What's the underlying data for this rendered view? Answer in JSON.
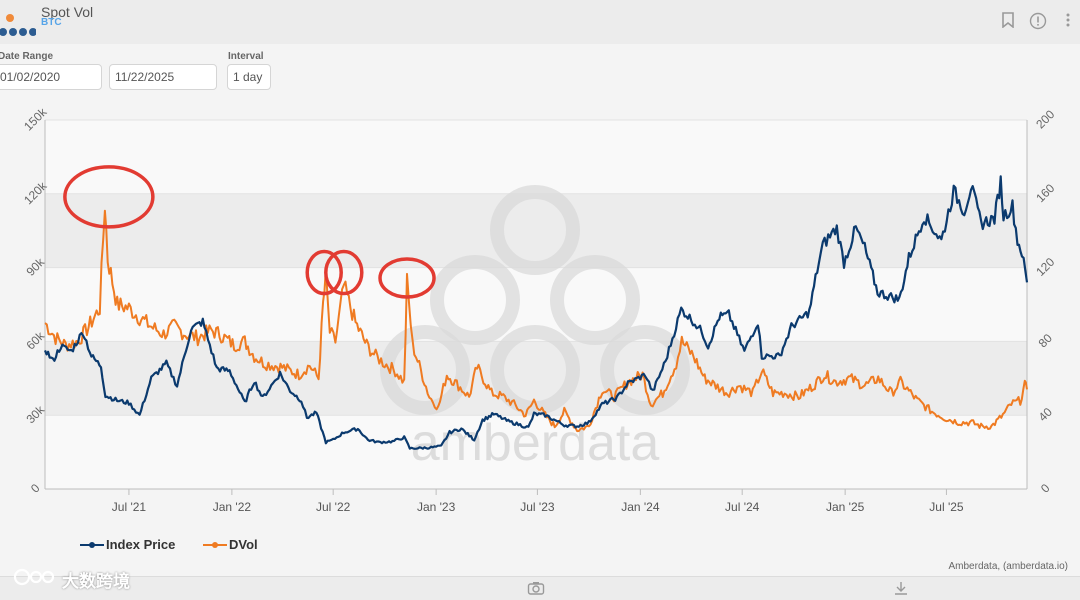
{
  "header": {
    "title": "Spot Vol",
    "subtitle": "BTC",
    "icons": [
      "bookmark-icon",
      "info-icon",
      "more-vertical-icon"
    ]
  },
  "controls": {
    "date_range_label": "Date Range",
    "start_date": "01/02/2020",
    "end_date": "11/22/2025",
    "interval_label": "Interval",
    "interval_value": "1 day"
  },
  "colors": {
    "index_price": "#0b3a6e",
    "dvol": "#ef7b22",
    "annotation": "#e23b32"
  },
  "chart_data": {
    "type": "line",
    "title": "",
    "xlabel": "",
    "ylabel": "",
    "x_ticks": [
      "Jul '21",
      "Jan '22",
      "Jul '22",
      "Jan '23",
      "Jul '23",
      "Jan '24",
      "Jul '24",
      "Jan '25",
      "Jul '25"
    ],
    "x_range": [
      "2021-02-01",
      "2025-11-22"
    ],
    "y_left": {
      "range": [
        0,
        150000
      ],
      "ticks": [
        "0",
        "30k",
        "60k",
        "90k",
        "120k",
        "150k"
      ]
    },
    "y_right": {
      "range": [
        0,
        200
      ],
      "ticks": [
        "0",
        "40",
        "80",
        "120",
        "160",
        "200"
      ]
    },
    "grid": true,
    "legend_position": "bottom-left",
    "series": [
      {
        "name": "Index Price",
        "axis": "left",
        "points": [
          [
            "2021-02-01",
            57000
          ],
          [
            "2021-02-15",
            52000
          ],
          [
            "2021-03-01",
            58000
          ],
          [
            "2021-03-20",
            56000
          ],
          [
            "2021-04-10",
            64000
          ],
          [
            "2021-04-25",
            54000
          ],
          [
            "2021-05-12",
            50000
          ],
          [
            "2021-05-20",
            38000
          ],
          [
            "2021-06-10",
            36000
          ],
          [
            "2021-07-01",
            35000
          ],
          [
            "2021-07-20",
            30000
          ],
          [
            "2021-08-10",
            45000
          ],
          [
            "2021-09-06",
            51000
          ],
          [
            "2021-09-25",
            42000
          ],
          [
            "2021-10-20",
            65000
          ],
          [
            "2021-11-10",
            68000
          ],
          [
            "2021-12-05",
            49000
          ],
          [
            "2021-12-28",
            48000
          ],
          [
            "2022-01-24",
            35000
          ],
          [
            "2022-02-10",
            44000
          ],
          [
            "2022-02-25",
            37000
          ],
          [
            "2022-03-28",
            47000
          ],
          [
            "2022-04-15",
            40000
          ],
          [
            "2022-05-05",
            36000
          ],
          [
            "2022-05-15",
            29000
          ],
          [
            "2022-06-01",
            31000
          ],
          [
            "2022-06-18",
            19000
          ],
          [
            "2022-07-01",
            20000
          ],
          [
            "2022-07-20",
            23000
          ],
          [
            "2022-08-14",
            24500
          ],
          [
            "2022-09-01",
            20000
          ],
          [
            "2022-09-20",
            19000
          ],
          [
            "2022-10-15",
            19300
          ],
          [
            "2022-11-05",
            21000
          ],
          [
            "2022-11-15",
            16500
          ],
          [
            "2022-12-20",
            16800
          ],
          [
            "2023-01-10",
            17400
          ],
          [
            "2023-01-25",
            23000
          ],
          [
            "2023-02-15",
            24500
          ],
          [
            "2023-03-10",
            20000
          ],
          [
            "2023-03-25",
            28000
          ],
          [
            "2023-04-14",
            30500
          ],
          [
            "2023-05-10",
            27500
          ],
          [
            "2023-06-15",
            25000
          ],
          [
            "2023-06-25",
            30500
          ],
          [
            "2023-07-15",
            30000
          ],
          [
            "2023-08-18",
            26000
          ],
          [
            "2023-09-10",
            25500
          ],
          [
            "2023-10-01",
            27000
          ],
          [
            "2023-10-25",
            34500
          ],
          [
            "2023-11-20",
            37000
          ],
          [
            "2023-12-10",
            43000
          ],
          [
            "2024-01-10",
            46500
          ],
          [
            "2024-01-23",
            39500
          ],
          [
            "2024-02-15",
            52000
          ],
          [
            "2024-03-14",
            73000
          ],
          [
            "2024-04-01",
            69000
          ],
          [
            "2024-04-20",
            64000
          ],
          [
            "2024-05-01",
            58000
          ],
          [
            "2024-05-21",
            70000
          ],
          [
            "2024-06-07",
            71000
          ],
          [
            "2024-07-05",
            56000
          ],
          [
            "2024-07-29",
            68000
          ],
          [
            "2024-08-05",
            54000
          ],
          [
            "2024-09-06",
            54000
          ],
          [
            "2024-09-27",
            66000
          ],
          [
            "2024-10-29",
            72000
          ],
          [
            "2024-11-12",
            89000
          ],
          [
            "2024-11-22",
            99000
          ],
          [
            "2024-12-05",
            103000
          ],
          [
            "2024-12-17",
            106000
          ],
          [
            "2024-12-30",
            92000
          ],
          [
            "2025-01-20",
            106000
          ],
          [
            "2025-02-05",
            98000
          ],
          [
            "2025-02-28",
            80000
          ],
          [
            "2025-04-08",
            77000
          ],
          [
            "2025-04-25",
            94000
          ],
          [
            "2025-05-22",
            111000
          ],
          [
            "2025-06-22",
            101000
          ],
          [
            "2025-07-14",
            121000
          ],
          [
            "2025-08-02",
            113000
          ],
          [
            "2025-08-14",
            123000
          ],
          [
            "2025-09-01",
            108000
          ],
          [
            "2025-09-25",
            110000
          ],
          [
            "2025-10-06",
            125000
          ],
          [
            "2025-10-11",
            111000
          ],
          [
            "2025-10-27",
            115000
          ],
          [
            "2025-11-05",
            101000
          ],
          [
            "2025-11-13",
            96000
          ],
          [
            "2025-11-22",
            84000
          ]
        ]
      },
      {
        "name": "DVol",
        "axis": "right",
        "points": [
          [
            "2021-02-01",
            90
          ],
          [
            "2021-02-20",
            82
          ],
          [
            "2021-03-10",
            78
          ],
          [
            "2021-04-01",
            80
          ],
          [
            "2021-04-20",
            88
          ],
          [
            "2021-05-10",
            98
          ],
          [
            "2021-05-19",
            155
          ],
          [
            "2021-05-24",
            125
          ],
          [
            "2021-06-10",
            100
          ],
          [
            "2021-07-01",
            98
          ],
          [
            "2021-07-20",
            93
          ],
          [
            "2021-08-10",
            88
          ],
          [
            "2021-09-01",
            84
          ],
          [
            "2021-09-20",
            88
          ],
          [
            "2021-10-10",
            84
          ],
          [
            "2021-11-01",
            82
          ],
          [
            "2021-11-25",
            86
          ],
          [
            "2021-12-10",
            84
          ],
          [
            "2022-01-05",
            78
          ],
          [
            "2022-01-24",
            80
          ],
          [
            "2022-02-10",
            72
          ],
          [
            "2022-03-01",
            68
          ],
          [
            "2022-04-01",
            66
          ],
          [
            "2022-05-01",
            62
          ],
          [
            "2022-05-20",
            67
          ],
          [
            "2022-06-05",
            60
          ],
          [
            "2022-06-13",
            100
          ],
          [
            "2022-06-18",
            115
          ],
          [
            "2022-06-25",
            85
          ],
          [
            "2022-07-05",
            80
          ],
          [
            "2022-07-20",
            110
          ],
          [
            "2022-08-10",
            90
          ],
          [
            "2022-08-30",
            78
          ],
          [
            "2022-09-15",
            72
          ],
          [
            "2022-10-01",
            68
          ],
          [
            "2022-10-20",
            64
          ],
          [
            "2022-11-05",
            58
          ],
          [
            "2022-11-10",
            112
          ],
          [
            "2022-11-20",
            78
          ],
          [
            "2022-12-05",
            64
          ],
          [
            "2022-12-20",
            50
          ],
          [
            "2023-01-05",
            44
          ],
          [
            "2023-01-20",
            62
          ],
          [
            "2023-02-10",
            56
          ],
          [
            "2023-03-01",
            50
          ],
          [
            "2023-03-15",
            66
          ],
          [
            "2023-04-10",
            52
          ],
          [
            "2023-05-01",
            50
          ],
          [
            "2023-05-20",
            46
          ],
          [
            "2023-06-10",
            40
          ],
          [
            "2023-06-25",
            48
          ],
          [
            "2023-07-15",
            40
          ],
          [
            "2023-08-01",
            34
          ],
          [
            "2023-08-18",
            42
          ],
          [
            "2023-09-10",
            32
          ],
          [
            "2023-10-01",
            34
          ],
          [
            "2023-10-25",
            54
          ],
          [
            "2023-11-15",
            50
          ],
          [
            "2023-12-10",
            58
          ],
          [
            "2024-01-05",
            62
          ],
          [
            "2024-01-20",
            46
          ],
          [
            "2024-02-10",
            52
          ],
          [
            "2024-03-05",
            68
          ],
          [
            "2024-03-15",
            80
          ],
          [
            "2024-04-05",
            72
          ],
          [
            "2024-04-25",
            60
          ],
          [
            "2024-05-15",
            56
          ],
          [
            "2024-06-05",
            52
          ],
          [
            "2024-06-25",
            56
          ],
          [
            "2024-07-20",
            52
          ],
          [
            "2024-08-05",
            64
          ],
          [
            "2024-08-25",
            52
          ],
          [
            "2024-09-15",
            52
          ],
          [
            "2024-10-10",
            50
          ],
          [
            "2024-11-05",
            56
          ],
          [
            "2024-11-25",
            62
          ],
          [
            "2024-12-15",
            58
          ],
          [
            "2025-01-10",
            60
          ],
          [
            "2025-02-05",
            56
          ],
          [
            "2025-03-01",
            60
          ],
          [
            "2025-03-25",
            52
          ],
          [
            "2025-04-10",
            58
          ],
          [
            "2025-05-10",
            48
          ],
          [
            "2025-06-05",
            42
          ],
          [
            "2025-07-01",
            38
          ],
          [
            "2025-07-25",
            36
          ],
          [
            "2025-08-15",
            36
          ],
          [
            "2025-09-01",
            34
          ],
          [
            "2025-09-20",
            34
          ],
          [
            "2025-10-10",
            40
          ],
          [
            "2025-10-25",
            46
          ],
          [
            "2025-11-10",
            48
          ],
          [
            "2025-11-18",
            56
          ],
          [
            "2025-11-22",
            54
          ]
        ]
      }
    ],
    "annotations": [
      {
        "type": "circle",
        "x": "2021-05-19",
        "axis": "right",
        "y": 154,
        "label": ""
      },
      {
        "type": "circle",
        "x": "2022-06-15",
        "axis": "right",
        "y": 113,
        "label": ""
      },
      {
        "type": "circle",
        "x": "2022-07-20",
        "axis": "right",
        "y": 113,
        "label": ""
      },
      {
        "type": "circle",
        "x": "2022-11-10",
        "axis": "right",
        "y": 110,
        "label": ""
      }
    ],
    "credit": "Amberdata, (amberdata.io)",
    "watermark": "amberdata"
  },
  "watermark_cn": "大数跨境",
  "footer": {
    "icons": [
      "camera-icon",
      "download-icon"
    ]
  }
}
